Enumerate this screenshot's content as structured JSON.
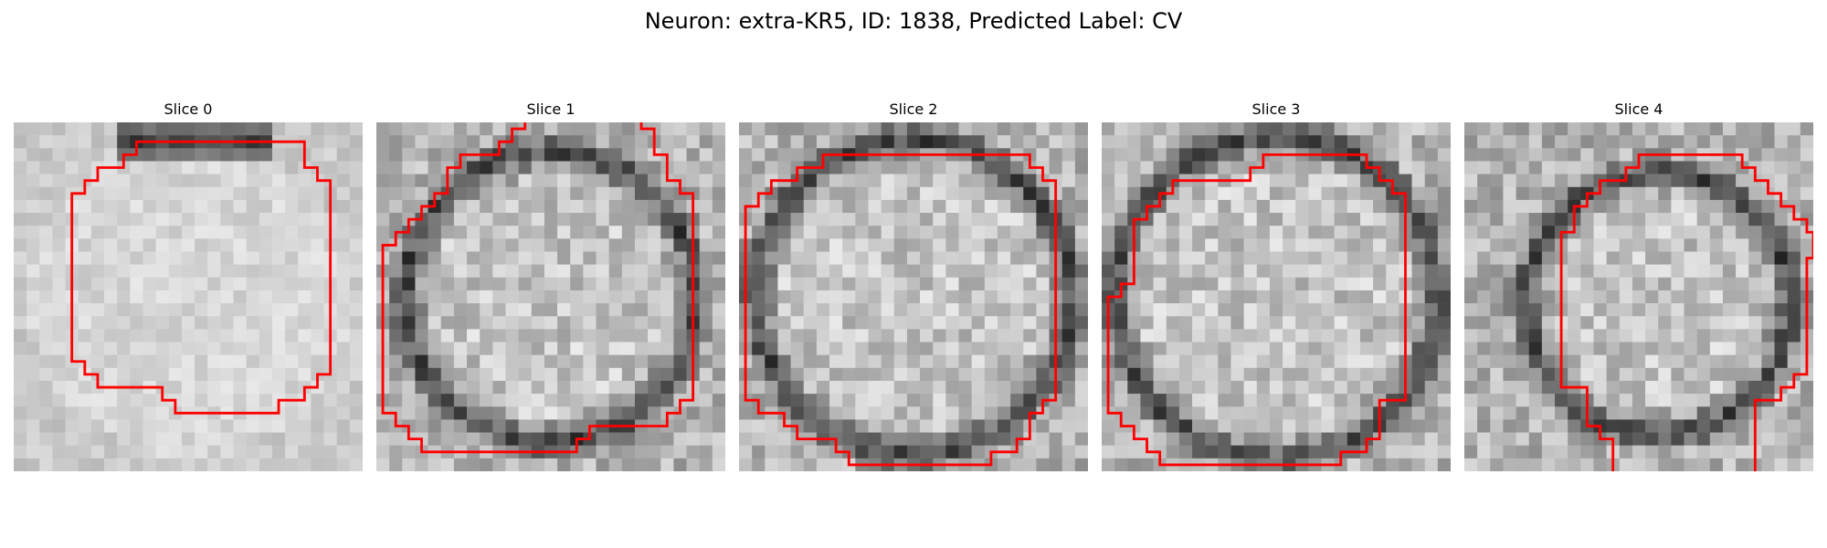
{
  "figure": {
    "title": "Neuron: extra-KR5, ID: 1838, Predicted Label: CV",
    "contour_color": "#ff0000"
  },
  "panels": [
    {
      "title": "Slice 0",
      "contour_open": false,
      "contour": [
        [
          9.5,
          1.5
        ],
        [
          22.5,
          1.5
        ],
        [
          22.5,
          3.5
        ],
        [
          23.5,
          3.5
        ],
        [
          23.5,
          4.5
        ],
        [
          24.5,
          4.5
        ],
        [
          24.5,
          19.5
        ],
        [
          23.5,
          19.5
        ],
        [
          23.5,
          20.5
        ],
        [
          22.5,
          20.5
        ],
        [
          22.5,
          21.5
        ],
        [
          20.5,
          21.5
        ],
        [
          20.5,
          22.5
        ],
        [
          12.5,
          22.5
        ],
        [
          12.5,
          21.5
        ],
        [
          11.5,
          21.5
        ],
        [
          11.5,
          20.5
        ],
        [
          6.5,
          20.5
        ],
        [
          6.5,
          19.5
        ],
        [
          5.5,
          19.5
        ],
        [
          5.5,
          18.5
        ],
        [
          4.5,
          18.5
        ],
        [
          4.5,
          5.5
        ],
        [
          5.5,
          5.5
        ],
        [
          5.5,
          4.5
        ],
        [
          6.5,
          4.5
        ],
        [
          6.5,
          3.5
        ],
        [
          8.5,
          3.5
        ],
        [
          8.5,
          2.5
        ],
        [
          9.5,
          2.5
        ]
      ]
    },
    {
      "title": "Slice 1",
      "contour_open": true,
      "contour": [
        [
          11.5,
          0
        ],
        [
          11.5,
          0.5
        ],
        [
          10.5,
          0.5
        ],
        [
          10.5,
          1.5
        ],
        [
          9.5,
          1.5
        ],
        [
          9.5,
          2.5
        ],
        [
          6.5,
          2.5
        ],
        [
          6.5,
          3.5
        ],
        [
          5.5,
          3.5
        ],
        [
          5.5,
          5.5
        ],
        [
          4.5,
          5.5
        ],
        [
          4.5,
          6.5
        ],
        [
          3.5,
          6.5
        ],
        [
          3.5,
          7.5
        ],
        [
          2.5,
          7.5
        ],
        [
          2.5,
          8.5
        ],
        [
          1.5,
          8.5
        ],
        [
          1.5,
          9.5
        ],
        [
          0.5,
          9.5
        ],
        [
          0.5,
          22.5
        ],
        [
          1.5,
          22.5
        ],
        [
          1.5,
          23.5
        ],
        [
          2.5,
          23.5
        ],
        [
          2.5,
          24.5
        ],
        [
          3.5,
          24.5
        ],
        [
          3.5,
          25.5
        ],
        [
          15.5,
          25.5
        ],
        [
          15.5,
          24.5
        ],
        [
          16.5,
          24.5
        ],
        [
          16.5,
          23.5
        ],
        [
          22.5,
          23.5
        ],
        [
          22.5,
          22.5
        ],
        [
          23.5,
          22.5
        ],
        [
          23.5,
          21.5
        ],
        [
          24.5,
          21.5
        ],
        [
          24.5,
          5.5
        ],
        [
          23.5,
          5.5
        ],
        [
          23.5,
          4.5
        ],
        [
          22.5,
          4.5
        ],
        [
          22.5,
          2.5
        ],
        [
          21.5,
          2.5
        ],
        [
          21.5,
          0.5
        ],
        [
          20.5,
          0.5
        ],
        [
          20.5,
          0
        ]
      ]
    },
    {
      "title": "Slice 2",
      "contour_open": false,
      "contour": [
        [
          6.5,
          2.5
        ],
        [
          22.5,
          2.5
        ],
        [
          22.5,
          3.5
        ],
        [
          23.5,
          3.5
        ],
        [
          23.5,
          4.5
        ],
        [
          24.5,
          4.5
        ],
        [
          24.5,
          21.5
        ],
        [
          23.5,
          21.5
        ],
        [
          23.5,
          22.5
        ],
        [
          22.5,
          22.5
        ],
        [
          22.5,
          24.5
        ],
        [
          21.5,
          24.5
        ],
        [
          21.5,
          25.5
        ],
        [
          19.5,
          25.5
        ],
        [
          19.5,
          26.5
        ],
        [
          8.5,
          26.5
        ],
        [
          8.5,
          25.5
        ],
        [
          7.5,
          25.5
        ],
        [
          7.5,
          24.5
        ],
        [
          4.5,
          24.5
        ],
        [
          4.5,
          23.5
        ],
        [
          3.5,
          23.5
        ],
        [
          3.5,
          22.5
        ],
        [
          1.5,
          22.5
        ],
        [
          1.5,
          21.5
        ],
        [
          0.5,
          21.5
        ],
        [
          0.5,
          6.5
        ],
        [
          1.5,
          6.5
        ],
        [
          1.5,
          5.5
        ],
        [
          2.5,
          5.5
        ],
        [
          2.5,
          4.5
        ],
        [
          4.5,
          4.5
        ],
        [
          4.5,
          3.5
        ],
        [
          6.5,
          3.5
        ]
      ]
    },
    {
      "title": "Slice 3",
      "contour_open": false,
      "contour": [
        [
          12.5,
          2.5
        ],
        [
          20.5,
          2.5
        ],
        [
          20.5,
          3.5
        ],
        [
          21.5,
          3.5
        ],
        [
          21.5,
          4.5
        ],
        [
          22.5,
          4.5
        ],
        [
          22.5,
          5.5
        ],
        [
          23.5,
          5.5
        ],
        [
          23.5,
          21.5
        ],
        [
          21.5,
          21.5
        ],
        [
          21.5,
          24.5
        ],
        [
          20.5,
          24.5
        ],
        [
          20.5,
          25.5
        ],
        [
          18.5,
          25.5
        ],
        [
          18.5,
          26.5
        ],
        [
          4.5,
          26.5
        ],
        [
          4.5,
          25.5
        ],
        [
          3.5,
          25.5
        ],
        [
          3.5,
          24.5
        ],
        [
          2.5,
          24.5
        ],
        [
          2.5,
          23.5
        ],
        [
          1.5,
          23.5
        ],
        [
          1.5,
          22.5
        ],
        [
          0.5,
          22.5
        ],
        [
          0.5,
          13.5
        ],
        [
          1.5,
          13.5
        ],
        [
          1.5,
          12.5
        ],
        [
          2.5,
          12.5
        ],
        [
          2.5,
          7.5
        ],
        [
          3.5,
          7.5
        ],
        [
          3.5,
          6.5
        ],
        [
          4.5,
          6.5
        ],
        [
          4.5,
          5.5
        ],
        [
          5.5,
          5.5
        ],
        [
          5.5,
          4.5
        ],
        [
          11.5,
          4.5
        ],
        [
          11.5,
          3.5
        ],
        [
          12.5,
          3.5
        ]
      ]
    },
    {
      "title": "Slice 4",
      "contour_open": true,
      "contour": [
        [
          11.5,
          27
        ],
        [
          11.5,
          24.5
        ],
        [
          10.5,
          24.5
        ],
        [
          10.5,
          23.5
        ],
        [
          9.5,
          23.5
        ],
        [
          9.5,
          20.5
        ],
        [
          7.5,
          20.5
        ],
        [
          7.5,
          8.5
        ],
        [
          8.5,
          8.5
        ],
        [
          8.5,
          6.5
        ],
        [
          9.5,
          6.5
        ],
        [
          9.5,
          5.5
        ],
        [
          10.5,
          5.5
        ],
        [
          10.5,
          4.5
        ],
        [
          12.5,
          4.5
        ],
        [
          12.5,
          3.5
        ],
        [
          13.5,
          3.5
        ],
        [
          13.5,
          2.5
        ],
        [
          21.5,
          2.5
        ],
        [
          21.5,
          3.5
        ],
        [
          22.5,
          3.5
        ],
        [
          22.5,
          4.5
        ],
        [
          23.5,
          4.5
        ],
        [
          23.5,
          5.5
        ],
        [
          24.5,
          5.5
        ],
        [
          24.5,
          6.5
        ],
        [
          25.5,
          6.5
        ],
        [
          25.5,
          7.5
        ],
        [
          26.5,
          7.5
        ],
        [
          26.5,
          8.5
        ],
        [
          27,
          8.5
        ],
        [
          27,
          10.5
        ],
        [
          26.5,
          10.5
        ],
        [
          26.5,
          19.5
        ],
        [
          25.5,
          19.5
        ],
        [
          25.5,
          20.5
        ],
        [
          24.5,
          20.5
        ],
        [
          24.5,
          21.5
        ],
        [
          22.5,
          21.5
        ],
        [
          22.5,
          27
        ]
      ]
    }
  ]
}
